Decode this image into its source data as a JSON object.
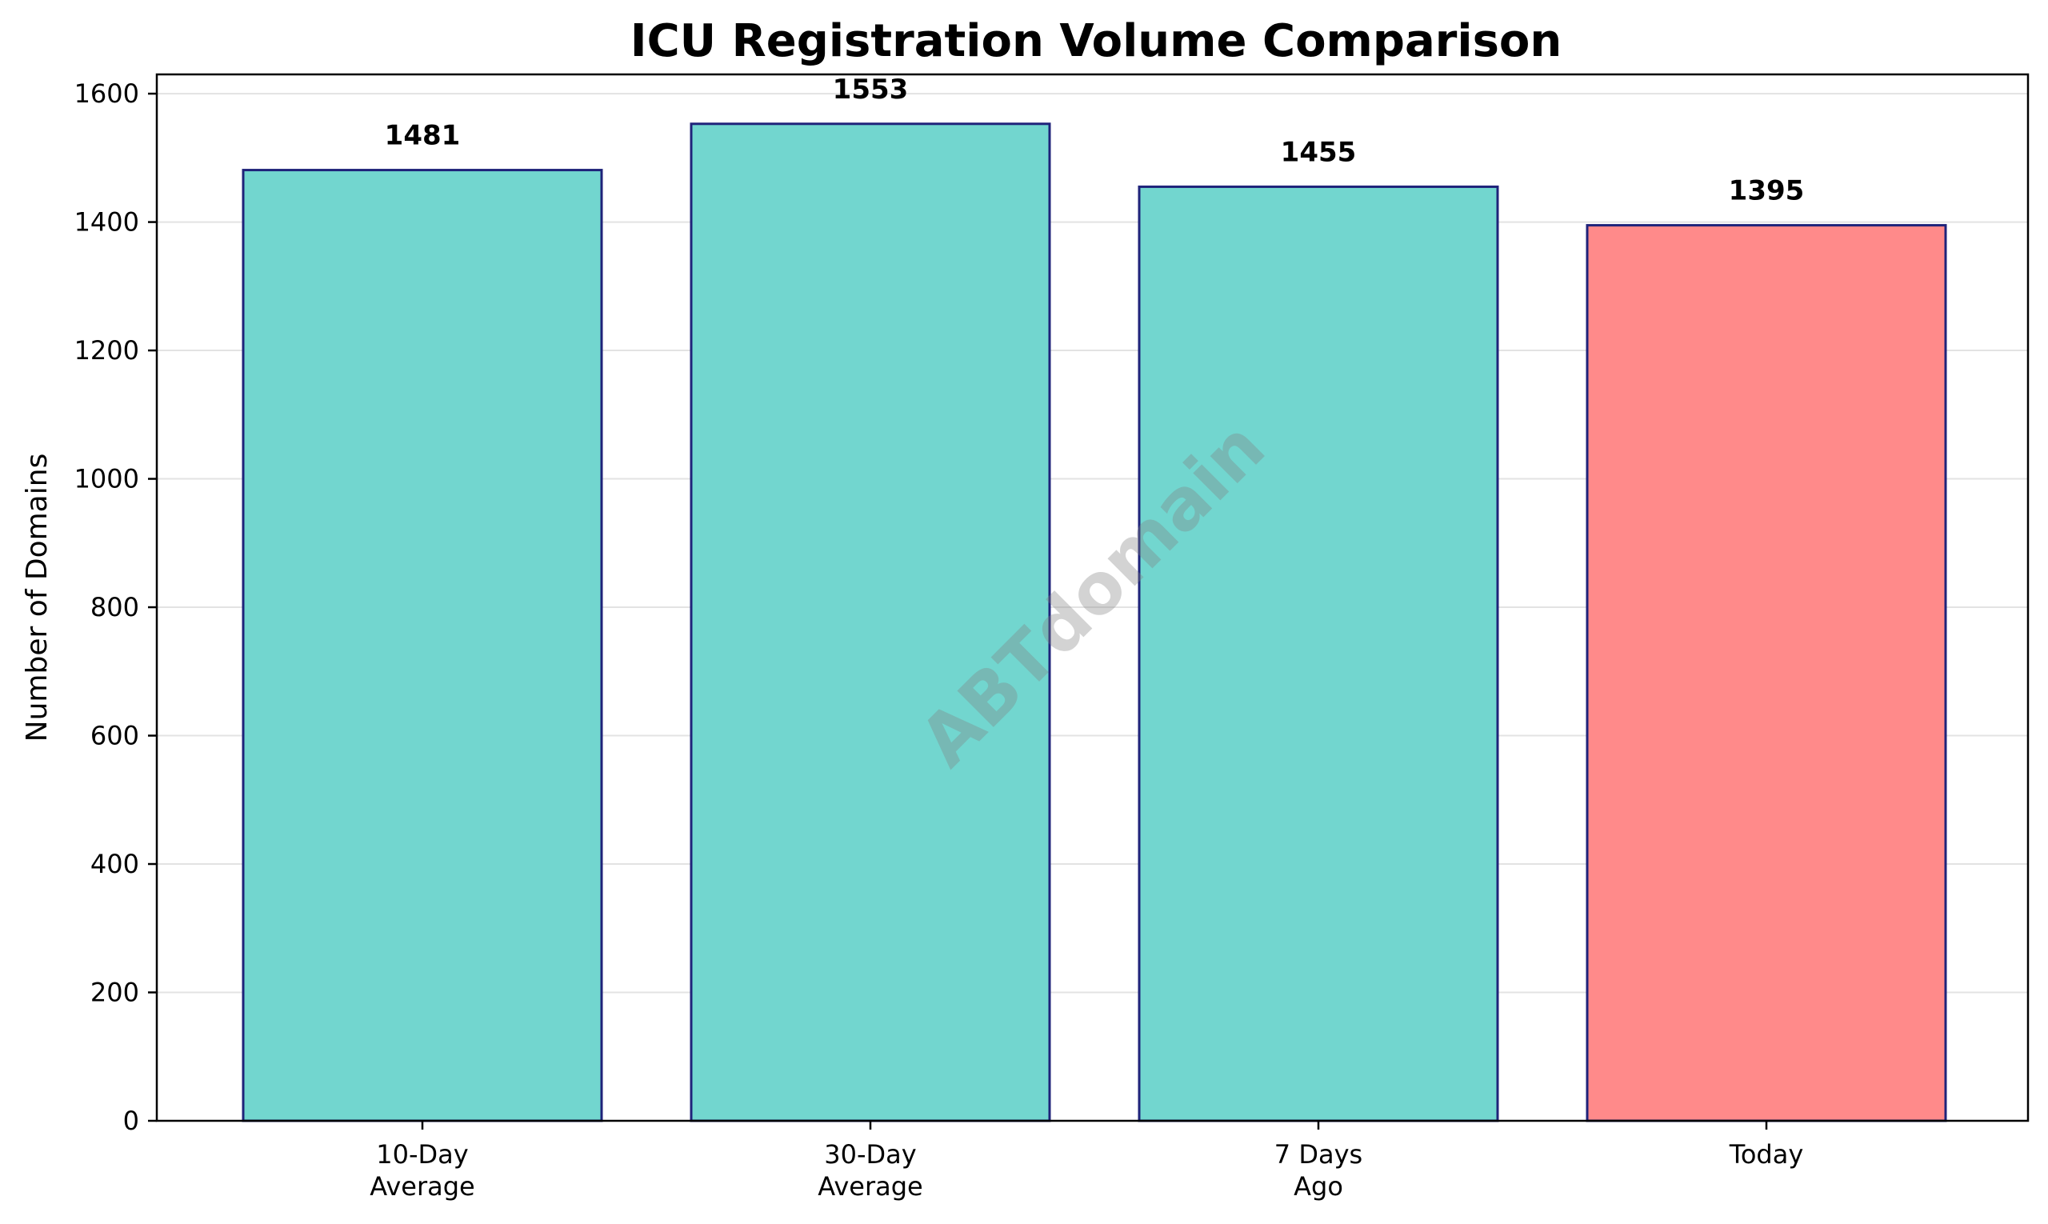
{
  "chart_data": {
    "type": "bar",
    "title": "ICU Registration Volume Comparison",
    "xlabel": "",
    "ylabel": "Number of Domains",
    "categories": [
      [
        "10-Day",
        "Average"
      ],
      [
        "30-Day",
        "Average"
      ],
      [
        "7 Days",
        "Ago"
      ],
      [
        "Today"
      ]
    ],
    "values": [
      1481,
      1553,
      1455,
      1395
    ],
    "data_labels": [
      "1481",
      "1553",
      "1455",
      "1395"
    ],
    "bar_colors": [
      "#72D6CF",
      "#72D6CF",
      "#72D6CF",
      "#FF8A8A"
    ],
    "bar_edge_color": "#1F237A",
    "ylim": [
      0,
      1630
    ],
    "yticks": [
      0,
      200,
      400,
      600,
      800,
      1000,
      1200,
      1400,
      1600
    ],
    "grid": "y",
    "legend": "none",
    "watermark": "ABTdomain"
  }
}
